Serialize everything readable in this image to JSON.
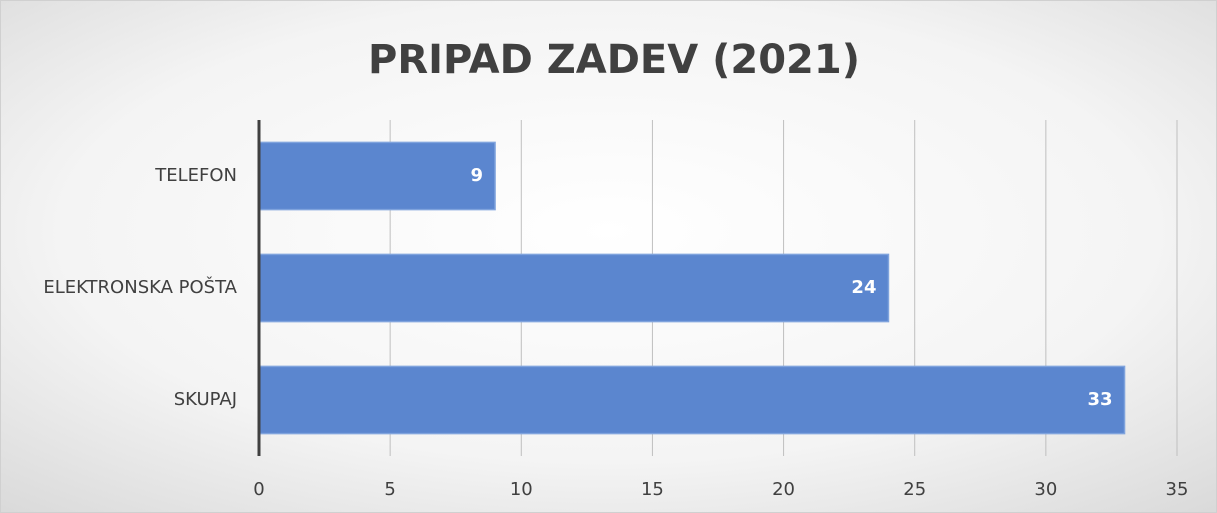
{
  "chart_data": {
    "type": "bar",
    "title": "PRIPAD ZADEV (2021)",
    "categories": [
      "TELEFON",
      "ELEKTRONSKA POŠTA",
      "SKUPAJ"
    ],
    "values": [
      9,
      24,
      33
    ],
    "color": "#5b86cf",
    "xlim": [
      0,
      35
    ],
    "xticks": [
      0,
      5,
      10,
      15,
      20,
      25,
      30,
      35
    ],
    "grid": true
  }
}
